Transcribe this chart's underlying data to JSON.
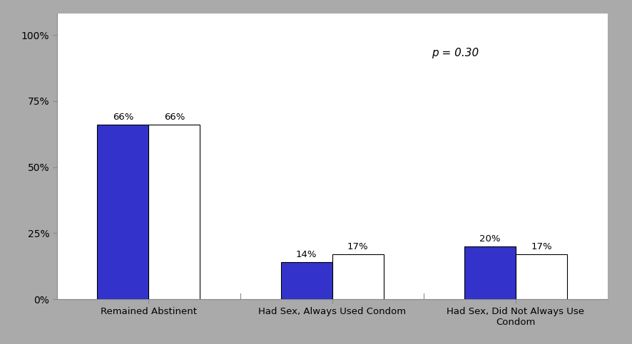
{
  "categories": [
    "Remained Abstinent",
    "Had Sex, Always Used Condom",
    "Had Sex, Did Not Always Use\nCondom"
  ],
  "life_skills": [
    66,
    14,
    20
  ],
  "control": [
    66,
    17,
    17
  ],
  "bar_color_life": "#3333CC",
  "bar_color_control": "#FFFFFF",
  "bar_edgecolor": "#000000",
  "yticks": [
    0,
    25,
    50,
    75,
    100
  ],
  "ytick_labels": [
    "0%",
    "25%",
    "50%",
    "75%",
    "100%"
  ],
  "ylim": [
    0,
    108
  ],
  "p_value_text": "p = 0.30",
  "background_color": "#FFFFFF",
  "figure_background": "#AAAAAA",
  "bar_width": 0.28,
  "spine_color": "#888888"
}
